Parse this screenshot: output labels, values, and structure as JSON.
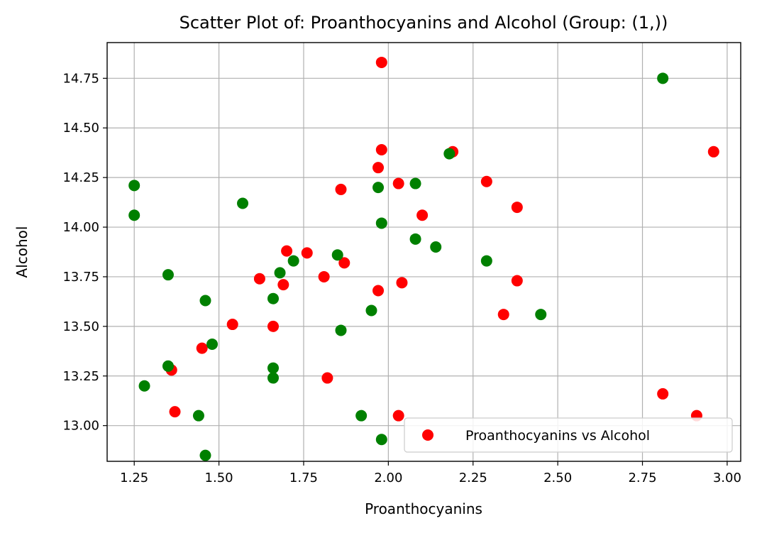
{
  "chart_data": {
    "type": "scatter",
    "title": "Scatter Plot of: Proanthocyanins and Alcohol (Group: (1,))",
    "xlabel": "Proanthocyanins",
    "ylabel": "Alcohol",
    "xlim": [
      1.17,
      3.04
    ],
    "ylim": [
      12.82,
      14.93
    ],
    "xticks": [
      1.25,
      1.5,
      1.75,
      2.0,
      2.25,
      2.5,
      2.75,
      3.0
    ],
    "xtick_labels": [
      "1.25",
      "1.50",
      "1.75",
      "2.00",
      "2.25",
      "2.50",
      "2.75",
      "3.00"
    ],
    "yticks": [
      13.0,
      13.25,
      13.5,
      13.75,
      14.0,
      14.25,
      14.5,
      14.75
    ],
    "ytick_labels": [
      "13.00",
      "13.25",
      "13.50",
      "13.75",
      "14.00",
      "14.25",
      "14.50",
      "14.75"
    ],
    "grid": true,
    "legend_position": "bottom-right",
    "series": [
      {
        "name": "Proanthocyanins vs Alcohol",
        "color": "#ff0000",
        "points": [
          [
            1.98,
            14.83
          ],
          [
            1.98,
            14.39
          ],
          [
            2.19,
            14.38
          ],
          [
            2.96,
            14.38
          ],
          [
            1.97,
            14.3
          ],
          [
            2.29,
            14.23
          ],
          [
            2.03,
            14.22
          ],
          [
            1.86,
            14.19
          ],
          [
            2.38,
            14.1
          ],
          [
            2.1,
            14.06
          ],
          [
            1.7,
            13.88
          ],
          [
            1.76,
            13.87
          ],
          [
            1.87,
            13.82
          ],
          [
            1.62,
            13.74
          ],
          [
            1.81,
            13.75
          ],
          [
            1.69,
            13.71
          ],
          [
            2.04,
            13.72
          ],
          [
            2.38,
            13.73
          ],
          [
            1.97,
            13.68
          ],
          [
            2.34,
            13.56
          ],
          [
            1.54,
            13.51
          ],
          [
            1.66,
            13.5
          ],
          [
            1.45,
            13.39
          ],
          [
            1.36,
            13.28
          ],
          [
            1.82,
            13.24
          ],
          [
            1.37,
            13.07
          ],
          [
            2.03,
            13.05
          ],
          [
            2.81,
            13.16
          ],
          [
            2.91,
            13.05
          ]
        ]
      },
      {
        "color": "#008000",
        "points": [
          [
            2.81,
            14.75
          ],
          [
            2.18,
            14.37
          ],
          [
            1.25,
            14.21
          ],
          [
            2.08,
            14.22
          ],
          [
            1.97,
            14.2
          ],
          [
            1.57,
            14.12
          ],
          [
            1.25,
            14.06
          ],
          [
            1.98,
            14.02
          ],
          [
            2.08,
            13.94
          ],
          [
            2.14,
            13.9
          ],
          [
            1.85,
            13.86
          ],
          [
            1.72,
            13.83
          ],
          [
            2.29,
            13.83
          ],
          [
            1.68,
            13.77
          ],
          [
            1.35,
            13.76
          ],
          [
            1.66,
            13.64
          ],
          [
            1.46,
            13.63
          ],
          [
            1.95,
            13.58
          ],
          [
            2.45,
            13.56
          ],
          [
            1.86,
            13.48
          ],
          [
            1.48,
            13.41
          ],
          [
            1.35,
            13.3
          ],
          [
            1.66,
            13.29
          ],
          [
            1.66,
            13.24
          ],
          [
            1.28,
            13.2
          ],
          [
            1.44,
            13.05
          ],
          [
            1.92,
            13.05
          ],
          [
            1.98,
            12.93
          ],
          [
            1.46,
            12.85
          ]
        ]
      }
    ]
  }
}
